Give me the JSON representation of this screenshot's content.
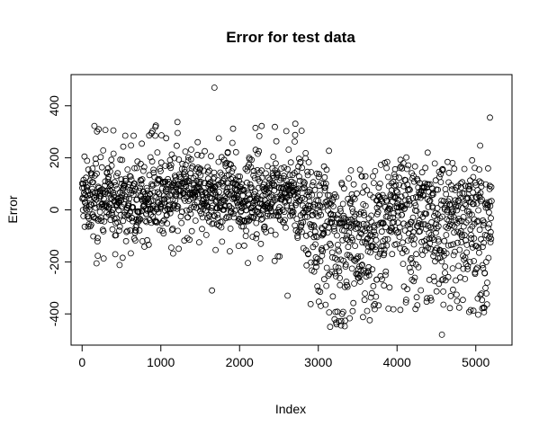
{
  "chart_data": {
    "type": "scatter",
    "title": "Error for test data",
    "xlabel": "Index",
    "ylabel": "Error",
    "xlim": [
      -140,
      5460
    ],
    "ylim": [
      -520,
      520
    ],
    "xticks": [
      0,
      1000,
      2000,
      3000,
      4000,
      5000
    ],
    "yticks": [
      -400,
      -200,
      0,
      200,
      400
    ],
    "grid": false,
    "marker": "open-circle",
    "marker_color": "#000000",
    "n_points": 5200,
    "band_summary": [
      {
        "x_range": [
          0,
          1000
        ],
        "center": 40,
        "spread": [
          -250,
          390
        ]
      },
      {
        "x_range": [
          1000,
          2000
        ],
        "center": 50,
        "spread": [
          -310,
          470
        ]
      },
      {
        "x_range": [
          2000,
          2700
        ],
        "center": 50,
        "spread": [
          -330,
          350
        ]
      },
      {
        "x_range": [
          2700,
          3500
        ],
        "center": -40,
        "spread": [
          -450,
          310
        ]
      },
      {
        "x_range": [
          3500,
          4500
        ],
        "center": 20,
        "spread": [
          -440,
          310
        ]
      },
      {
        "x_range": [
          4500,
          5200
        ],
        "center": -10,
        "spread": [
          -480,
          360
        ]
      }
    ],
    "notable_points": [
      {
        "x": 1680,
        "y": 470
      },
      {
        "x": 5180,
        "y": 355
      },
      {
        "x": 1650,
        "y": -310
      },
      {
        "x": 2610,
        "y": -330
      },
      {
        "x": 3150,
        "y": -450
      },
      {
        "x": 4570,
        "y": -480
      }
    ]
  }
}
